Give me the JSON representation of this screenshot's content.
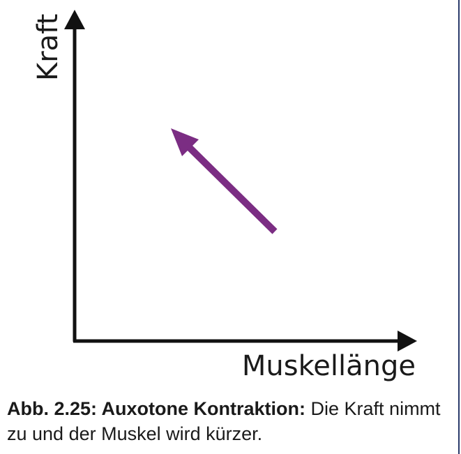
{
  "axes": {
    "y_label": "Kraft",
    "x_label": "Muskellänge"
  },
  "arrow": {
    "direction": "up-left",
    "color": "#7b2d83",
    "meaning": "Kraft nimmt zu, Muskellänge nimmt ab"
  },
  "caption": {
    "bold": "Abb. 2.25: Auxotone Kontraktion:",
    "text": " Die Kraft nimmt zu und der Muskel wird kürzer."
  },
  "colors": {
    "axis": "#111111",
    "arrow": "#7b2d83",
    "border": "#2a3a6a"
  }
}
